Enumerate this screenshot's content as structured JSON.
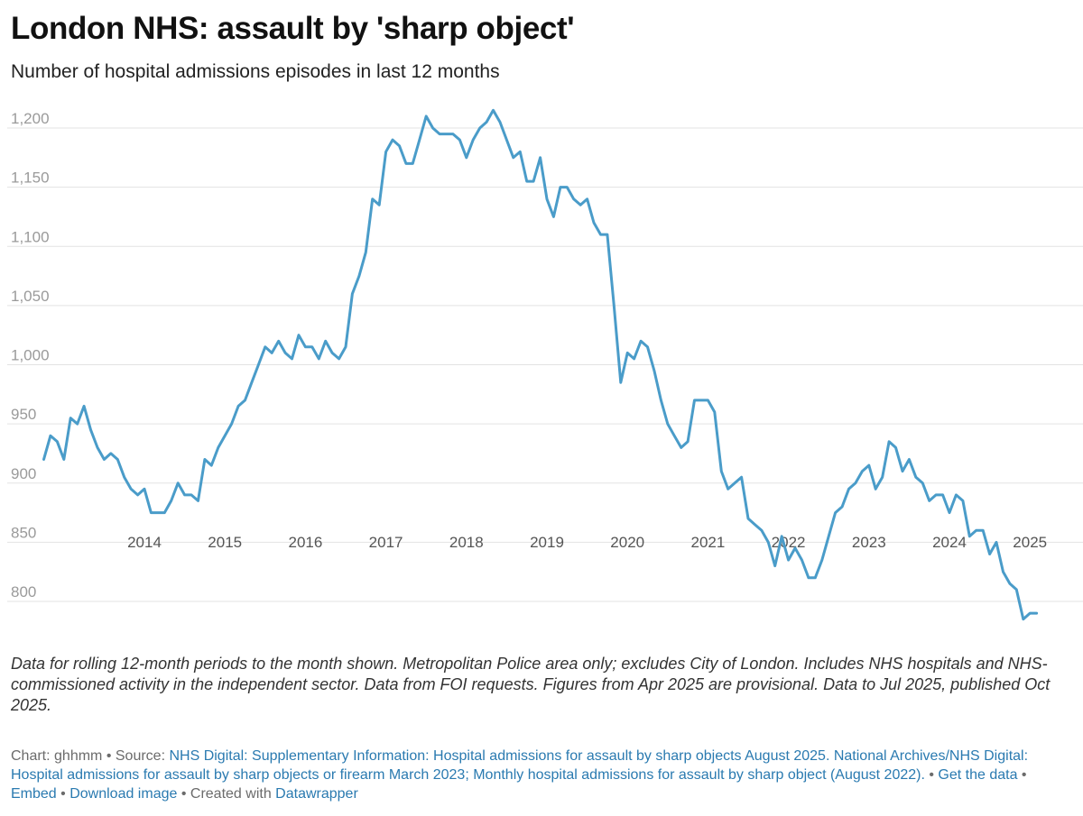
{
  "title": "London NHS: assault by 'sharp object'",
  "subtitle": "Number of hospital admissions episodes in last 12 months",
  "notes": "Data for rolling 12-month periods to the month shown. Metropolitan Police area only; excludes City of London. Includes NHS hospitals and NHS-commissioned activity in the independent sector. Data from FOI requests. Figures from Apr 2025 are provisional. Data to Jul 2025, published Oct 2025.",
  "footer": {
    "chart_label": "Chart: ghhmm",
    "source_label": "Source:",
    "source_text": "NHS Digital: Supplementary Information: Hospital admissions for assault by sharp objects August 2025. National Archives/NHS Digital: Hospital admissions for assault by sharp objects or firearm March 2023; Monthly hospital admissions for assault by sharp object (August 2022).",
    "get_data": "Get the data",
    "embed": "Embed",
    "download": "Download image",
    "created_with": "Created with",
    "datawrapper": "Datawrapper"
  },
  "colors": {
    "line": "#4a9cc9",
    "grid": "#e3e3e3",
    "link": "#2a7ab0"
  },
  "chart_data": {
    "type": "line",
    "title": "London NHS: assault by 'sharp object'",
    "subtitle": "Number of hospital admissions episodes in last 12 months",
    "xlabel": "",
    "ylabel": "",
    "x_start": "2013-04",
    "x_end": "2025-07",
    "x_ticks": [
      "2014",
      "2015",
      "2016",
      "2017",
      "2018",
      "2019",
      "2020",
      "2021",
      "2022",
      "2023",
      "2024",
      "2025"
    ],
    "y_ticks": [
      800,
      850,
      900,
      950,
      1000,
      1050,
      1100,
      1150,
      1200
    ],
    "y_tick_labels": [
      "800",
      "850",
      "900",
      "950",
      "1,000",
      "1,050",
      "1,100",
      "1,150",
      "1,200"
    ],
    "ylim": [
      780,
      1220
    ],
    "grid": true,
    "series": [
      {
        "frequency": "monthly",
        "values": [
          920,
          940,
          935,
          920,
          955,
          950,
          965,
          945,
          930,
          920,
          925,
          920,
          905,
          895,
          890,
          895,
          875,
          875,
          875,
          885,
          900,
          890,
          890,
          885,
          920,
          915,
          930,
          940,
          950,
          965,
          970,
          985,
          1000,
          1015,
          1010,
          1020,
          1010,
          1005,
          1025,
          1015,
          1015,
          1005,
          1020,
          1010,
          1005,
          1015,
          1060,
          1075,
          1095,
          1140,
          1135,
          1180,
          1190,
          1185,
          1170,
          1170,
          1190,
          1210,
          1200,
          1195,
          1195,
          1195,
          1190,
          1175,
          1190,
          1200,
          1205,
          1215,
          1205,
          1190,
          1175,
          1180,
          1155,
          1155,
          1175,
          1140,
          1125,
          1150,
          1150,
          1140,
          1135,
          1140,
          1120,
          1110,
          1110,
          1050,
          985,
          1010,
          1005,
          1020,
          1015,
          995,
          970,
          950,
          940,
          930,
          935,
          970,
          970,
          970,
          960,
          910,
          895,
          900,
          905,
          870,
          865,
          860,
          850,
          830,
          855,
          835,
          845,
          835,
          820,
          820,
          835,
          855,
          875,
          880,
          895,
          900,
          910,
          915,
          895,
          905,
          935,
          930,
          910,
          920,
          905,
          900,
          885,
          890,
          890,
          875,
          890,
          885,
          855,
          860,
          860,
          840,
          850,
          825,
          815,
          810,
          785,
          790,
          790
        ]
      }
    ]
  }
}
